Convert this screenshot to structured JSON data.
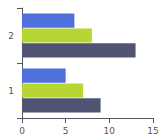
{
  "chart_data": {
    "type": "bar",
    "orientation": "horizontal",
    "categories": [
      "1",
      "2"
    ],
    "series": [
      {
        "values": [
          5.0,
          6.0
        ]
      },
      {
        "values": [
          7.0,
          8.0
        ]
      },
      {
        "values": [
          9.0,
          13.0
        ]
      }
    ],
    "xlim": [
      0,
      15
    ],
    "xticks": [
      0,
      5,
      10,
      15
    ],
    "grid": false
  }
}
